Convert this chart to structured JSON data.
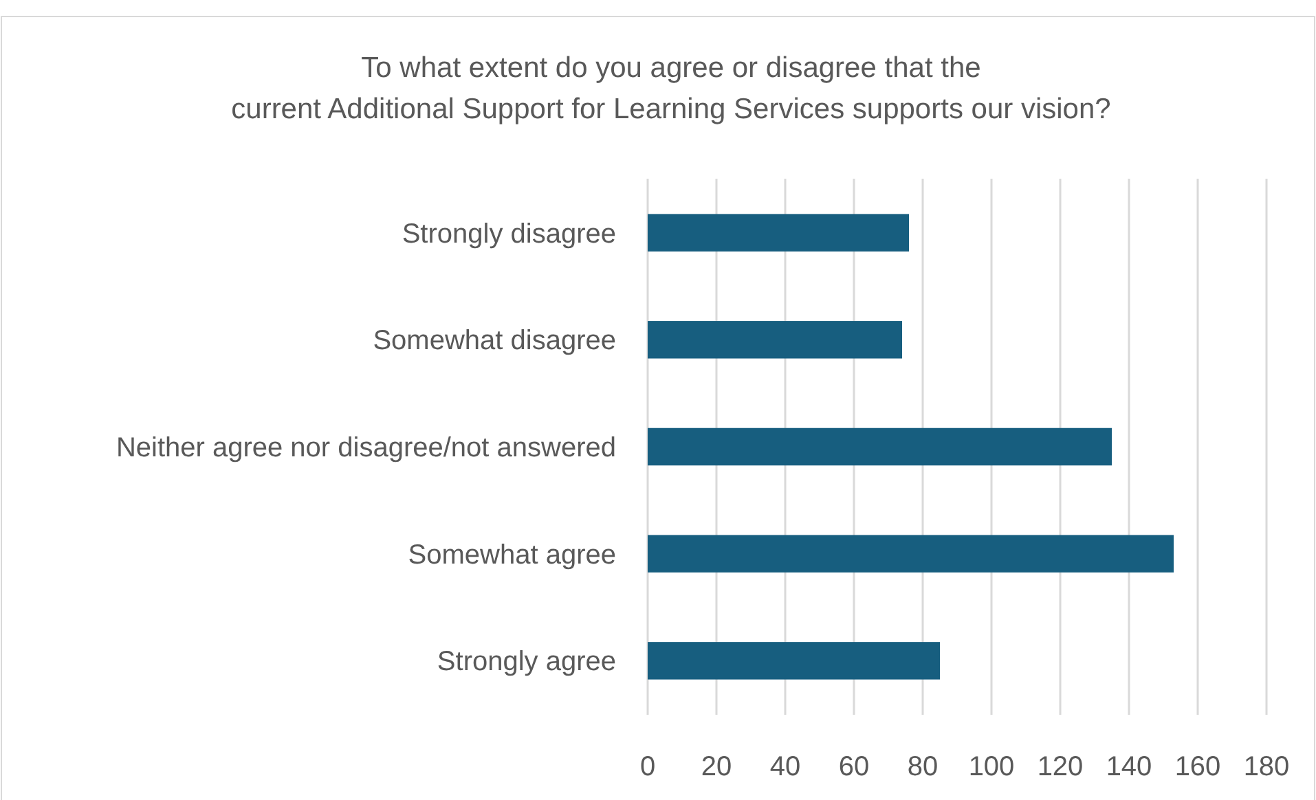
{
  "chart_data": {
    "type": "bar",
    "orientation": "horizontal",
    "title": "To what extent do you agree or disagree that the current Additional Support for Learning Services supports our vision?",
    "categories": [
      "Strongly disagree",
      "Somewhat disagree",
      "Neither agree nor disagree/not answered",
      "Somewhat agree",
      "Strongly agree"
    ],
    "values": [
      76,
      74,
      135,
      153,
      85
    ],
    "color": "#175e7f",
    "xlim": [
      0,
      180
    ],
    "xticks": [
      0,
      20,
      40,
      60,
      80,
      100,
      120,
      140,
      160,
      180
    ],
    "grid": "x"
  }
}
